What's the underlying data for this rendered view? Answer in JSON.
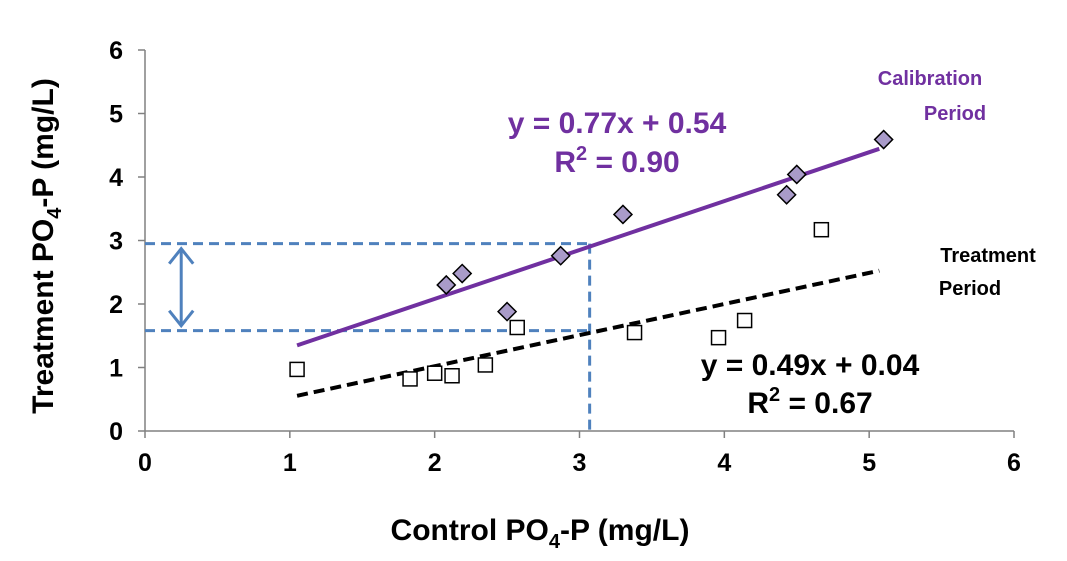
{
  "chart_data": {
    "type": "scatter",
    "xlabel": {
      "pre": "Control PO",
      "sub": "4",
      "post": "-P (mg/L)"
    },
    "ylabel": {
      "pre": "Treatment PO",
      "sub": "4",
      "post": "-P (mg/L)"
    },
    "xlim": [
      0,
      6
    ],
    "ylim": [
      0,
      6
    ],
    "x_ticks": [
      "0",
      "1",
      "2",
      "3",
      "4",
      "5",
      "6"
    ],
    "y_ticks": [
      "0",
      "1",
      "2",
      "3",
      "4",
      "5",
      "6"
    ],
    "grid": false,
    "series": [
      {
        "label_line1": "Calibration",
        "label_line2": "Period",
        "marker": "diamond",
        "color": "#7030a0",
        "marker_fill": "#a99bc9",
        "points": [
          [
            2.08,
            2.3
          ],
          [
            2.19,
            2.48
          ],
          [
            2.5,
            1.88
          ],
          [
            2.87,
            2.76
          ],
          [
            3.3,
            3.41
          ],
          [
            4.43,
            3.72
          ],
          [
            4.5,
            4.04
          ],
          [
            5.1,
            4.59
          ]
        ],
        "trendline": {
          "slope": 0.77,
          "intercept": 0.54,
          "x_range": [
            1.05,
            5.07
          ],
          "style": "solid"
        },
        "equation": "y = 0.77x + 0.54",
        "r2": {
          "pre": "R",
          "sup": "2",
          "post": " = 0.90"
        }
      },
      {
        "label_line1": "Treatment",
        "label_line2": "Period",
        "marker": "square",
        "color": "#000000",
        "marker_fill": "#ffffff",
        "points": [
          [
            1.05,
            0.97
          ],
          [
            1.83,
            0.82
          ],
          [
            2.0,
            0.91
          ],
          [
            2.12,
            0.87
          ],
          [
            2.35,
            1.04
          ],
          [
            2.57,
            1.63
          ],
          [
            3.38,
            1.55
          ],
          [
            3.96,
            1.47
          ],
          [
            4.14,
            1.74
          ],
          [
            4.67,
            3.17
          ]
        ],
        "trendline": {
          "slope": 0.49,
          "intercept": 0.04,
          "x_range": [
            1.05,
            5.07
          ],
          "style": "dashed"
        },
        "equation": "y = 0.49x + 0.04",
        "r2": {
          "pre": "R",
          "sup": "2",
          "post": " = 0.67"
        }
      }
    ],
    "annotations": {
      "guide_color": "#4f81bd",
      "guide_x": 3.07,
      "guide_y_upper": 2.95,
      "guide_y_lower": 1.58,
      "arrow_x": 0.25
    }
  }
}
